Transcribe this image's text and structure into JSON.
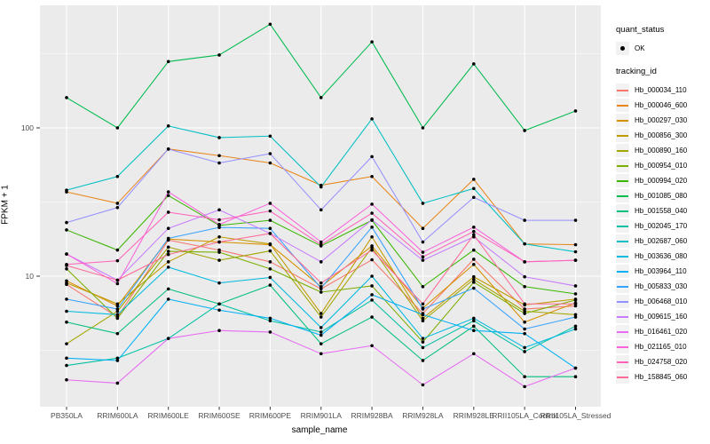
{
  "figure": {
    "panel_background": "#EBEBEB",
    "grid_color": "#FFFFFF",
    "tick_label_color": "#4D4D4D",
    "point_color": "#000000"
  },
  "legend": {
    "quant_status_title": "quant_status",
    "quant_ok_label": "OK",
    "tracking_title": "tracking_id"
  },
  "axes": {
    "y_title": "FPKM + 1",
    "x_title": "sample_name",
    "y_ticks": [
      {
        "label": "100",
        "value": 100
      },
      {
        "label": "10",
        "value": 10
      }
    ],
    "y_minor": [
      316.23,
      31.623,
      3.1623
    ]
  },
  "chart_data": {
    "type": "line",
    "title": "",
    "xlabel": "sample_name",
    "ylabel": "FPKM + 1",
    "y_scale": "log10",
    "ylim": [
      1.3,
      700
    ],
    "grid": true,
    "legend_position": "right",
    "point_shape": "filled-black-dot",
    "categories": [
      "PB350LA",
      "RRIM600LA",
      "RRIM600LE",
      "RRIM600SE",
      "RRIM600PE",
      "RRIM901LA",
      "RRIM928BA",
      "RRIM928LA",
      "RRIM928LE",
      "RRII105LA_Control",
      "RRII105LA_Stressed"
    ],
    "series": [
      {
        "name": "Hb_000034_110",
        "color": "#F8766D",
        "values": [
          8.8,
          5.3,
          17.5,
          15.0,
          12.5,
          8.2,
          12.9,
          5.6,
          13.0,
          6.0,
          6.3
        ]
      },
      {
        "name": "Hb_000046_600",
        "color": "#E8861C",
        "values": [
          37,
          31,
          72,
          65,
          58,
          41,
          47,
          21,
          45,
          16.5,
          16.3
        ]
      },
      {
        "name": "Hb_000297_030",
        "color": "#D89000",
        "values": [
          9.3,
          6.3,
          17.8,
          17.0,
          16.3,
          8.5,
          16.0,
          6.1,
          12.0,
          4.9,
          6.6
        ]
      },
      {
        "name": "Hb_000856_300",
        "color": "#C09B00",
        "values": [
          9.0,
          6.5,
          12.5,
          18.4,
          16.5,
          5.6,
          18.4,
          5.2,
          9.9,
          6.4,
          7.0
        ]
      },
      {
        "name": "Hb_000890_160",
        "color": "#A3A500",
        "values": [
          3.5,
          5.8,
          15.7,
          12.8,
          14.8,
          5.3,
          15.6,
          5.0,
          9.5,
          5.8,
          5.5
        ]
      },
      {
        "name": "Hb_000954_010",
        "color": "#7CAE00",
        "values": [
          11.2,
          5.2,
          14.7,
          14.5,
          11.2,
          7.8,
          8.6,
          3.6,
          9.1,
          5.6,
          6.9
        ]
      },
      {
        "name": "Hb_000994_020",
        "color": "#39B600",
        "values": [
          20.5,
          15.0,
          35,
          22,
          23.8,
          16.0,
          23.8,
          8.5,
          15.0,
          8.5,
          7.6
        ]
      },
      {
        "name": "Hb_001085_080",
        "color": "#00BB4E",
        "values": [
          160,
          100,
          280,
          310,
          500,
          160,
          380,
          100,
          270,
          96,
          130
        ]
      },
      {
        "name": "Hb_001558_040",
        "color": "#00BF7D",
        "values": [
          4.9,
          4.1,
          8.2,
          6.5,
          8.7,
          3.5,
          5.3,
          2.7,
          4.6,
          2.1,
          2.1
        ]
      },
      {
        "name": "Hb_002045_170",
        "color": "#00C1A3",
        "values": [
          2.5,
          2.8,
          3.8,
          6.5,
          5.0,
          4.2,
          6.9,
          3.3,
          5.0,
          3.1,
          4.6
        ]
      },
      {
        "name": "Hb_002687_060",
        "color": "#00BFC4",
        "values": [
          38,
          47,
          103,
          86,
          88,
          40,
          115,
          31,
          39,
          16.5,
          14.6
        ]
      },
      {
        "name": "Hb_003636_080",
        "color": "#00BAE0",
        "values": [
          5.8,
          5.5,
          11.5,
          9.0,
          9.8,
          4.5,
          10.0,
          3.8,
          5.2,
          3.3,
          4.4
        ]
      },
      {
        "name": "Hb_003964_110",
        "color": "#00B0F6",
        "values": [
          2.8,
          2.7,
          7.0,
          5.9,
          5.2,
          4.0,
          7.5,
          5.5,
          4.3,
          4.1,
          2.4
        ]
      },
      {
        "name": "Hb_005833_030",
        "color": "#35A2FF",
        "values": [
          7.0,
          6.0,
          18.0,
          21.3,
          21.0,
          8.3,
          21.4,
          6.0,
          8.3,
          4.4,
          5.3
        ]
      },
      {
        "name": "Hb_006468_010",
        "color": "#9590FF",
        "values": [
          23,
          29,
          72,
          58,
          67,
          28,
          64,
          17,
          34,
          23.8,
          23.8
        ]
      },
      {
        "name": "Hb_009615_160",
        "color": "#C77CFF",
        "values": [
          14.1,
          9.4,
          21,
          28,
          19.4,
          12.5,
          24,
          12.8,
          18.4,
          9.9,
          8.6
        ]
      },
      {
        "name": "Hb_016461_020",
        "color": "#E76BF3",
        "values": [
          2.0,
          1.9,
          3.8,
          4.3,
          4.2,
          3.0,
          3.4,
          1.85,
          3.0,
          1.8,
          2.4
        ]
      },
      {
        "name": "Hb_021165_010",
        "color": "#FA62DB",
        "values": [
          14.1,
          8.9,
          37,
          22.3,
          31,
          17,
          30.6,
          14.5,
          21.4,
          12.5,
          12.8
        ]
      },
      {
        "name": "Hb_024758_020",
        "color": "#FF62BC",
        "values": [
          12.0,
          12.7,
          27,
          24,
          27.5,
          16.3,
          26.6,
          13.5,
          20,
          12.5,
          12.8
        ]
      },
      {
        "name": "Hb_158845_060",
        "color": "#FF6A98",
        "values": [
          11.8,
          9.4,
          14,
          17,
          19.4,
          9.0,
          15,
          6.5,
          19,
          6.5,
          6.5
        ]
      }
    ]
  }
}
